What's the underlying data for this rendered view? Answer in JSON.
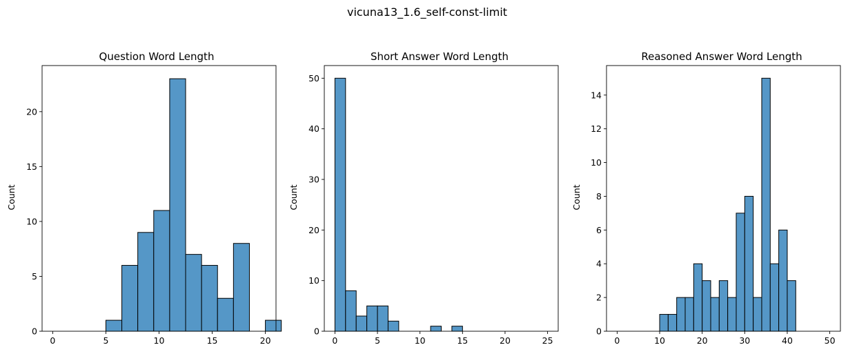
{
  "suptitle": "vicuna13_1.6_self-const-limit",
  "chart_data": [
    {
      "type": "bar",
      "title": "Question Word Length",
      "xlabel": "",
      "ylabel": "Count",
      "xlim": [
        -1,
        21
      ],
      "ylim": [
        0,
        24.2
      ],
      "xticks": [
        0,
        5,
        10,
        15,
        20
      ],
      "yticks": [
        0,
        5,
        10,
        15,
        20
      ],
      "bins": [
        {
          "x0": 5.0,
          "x1": 6.5,
          "count": 1
        },
        {
          "x0": 6.5,
          "x1": 8.0,
          "count": 6
        },
        {
          "x0": 8.0,
          "x1": 9.5,
          "count": 9
        },
        {
          "x0": 9.5,
          "x1": 11.0,
          "count": 11
        },
        {
          "x0": 11.0,
          "x1": 12.5,
          "count": 23
        },
        {
          "x0": 12.5,
          "x1": 14.0,
          "count": 7
        },
        {
          "x0": 14.0,
          "x1": 15.5,
          "count": 6
        },
        {
          "x0": 15.5,
          "x1": 17.0,
          "count": 3
        },
        {
          "x0": 17.0,
          "x1": 18.5,
          "count": 8
        },
        {
          "x0": 18.5,
          "x1": 20.0,
          "count": 0
        },
        {
          "x0": 20.0,
          "x1": 21.5,
          "count": 1
        }
      ]
    },
    {
      "type": "bar",
      "title": "Short Answer Word Length",
      "xlabel": "",
      "ylabel": "Count",
      "xlim": [
        -1.25,
        26.25
      ],
      "ylim": [
        0,
        52.5
      ],
      "xticks": [
        0,
        5,
        10,
        15,
        20,
        25
      ],
      "yticks": [
        0,
        10,
        20,
        30,
        40,
        50
      ],
      "bins": [
        {
          "x0": 0.0,
          "x1": 1.25,
          "count": 50
        },
        {
          "x0": 1.25,
          "x1": 2.5,
          "count": 8
        },
        {
          "x0": 2.5,
          "x1": 3.75,
          "count": 3
        },
        {
          "x0": 3.75,
          "x1": 5.0,
          "count": 5
        },
        {
          "x0": 5.0,
          "x1": 6.25,
          "count": 5
        },
        {
          "x0": 6.25,
          "x1": 7.5,
          "count": 2
        },
        {
          "x0": 11.25,
          "x1": 12.5,
          "count": 1
        },
        {
          "x0": 13.75,
          "x1": 15.0,
          "count": 1
        }
      ]
    },
    {
      "type": "bar",
      "title": "Reasoned Answer Word Length",
      "xlabel": "",
      "ylabel": "Count",
      "xlim": [
        -2.5,
        52.5
      ],
      "ylim": [
        0,
        15.75
      ],
      "xticks": [
        0,
        10,
        20,
        30,
        40,
        50
      ],
      "yticks": [
        0,
        2,
        4,
        6,
        8,
        10,
        12,
        14
      ],
      "bins": [
        {
          "x0": 10.0,
          "x1": 12.0,
          "count": 1
        },
        {
          "x0": 12.0,
          "x1": 14.0,
          "count": 1
        },
        {
          "x0": 14.0,
          "x1": 16.0,
          "count": 2
        },
        {
          "x0": 16.0,
          "x1": 18.0,
          "count": 2
        },
        {
          "x0": 18.0,
          "x1": 20.0,
          "count": 4
        },
        {
          "x0": 20.0,
          "x1": 22.0,
          "count": 3
        },
        {
          "x0": 22.0,
          "x1": 24.0,
          "count": 2
        },
        {
          "x0": 24.0,
          "x1": 26.0,
          "count": 3
        },
        {
          "x0": 26.0,
          "x1": 28.0,
          "count": 2
        },
        {
          "x0": 28.0,
          "x1": 30.0,
          "count": 7
        },
        {
          "x0": 30.0,
          "x1": 32.0,
          "count": 8
        },
        {
          "x0": 32.0,
          "x1": 34.0,
          "count": 2
        },
        {
          "x0": 34.0,
          "x1": 36.0,
          "count": 15
        },
        {
          "x0": 36.0,
          "x1": 38.0,
          "count": 4
        },
        {
          "x0": 38.0,
          "x1": 40.0,
          "count": 6
        },
        {
          "x0": 40.0,
          "x1": 42.0,
          "count": 3
        }
      ]
    }
  ],
  "colors": {
    "bar_fill": "#5597c7",
    "bar_edge": "#000000"
  }
}
